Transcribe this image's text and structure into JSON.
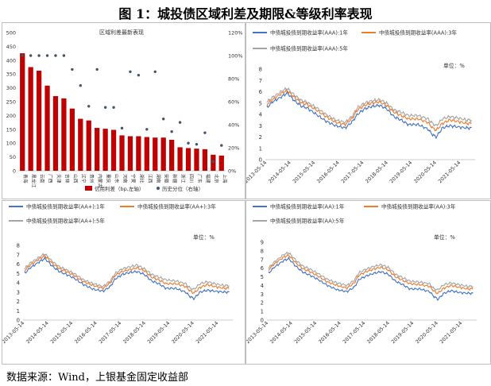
{
  "figure_title": "图 1：城投债区域利差及期限&等级利率表现",
  "source": "数据来源：Wind，上银基金固定收益部",
  "chart_data": [
    {
      "type": "bar",
      "title": "区域利差最新表现",
      "categories": [
        "青海",
        "黑龙江",
        "云南",
        "广西",
        "天津",
        "吉林",
        "山西",
        "辽宁",
        "贵州",
        "内蒙古",
        "重庆",
        "山东",
        "河南",
        "宁夏",
        "湖北",
        "江西",
        "湖南",
        "安徽",
        "新疆",
        "浙江",
        "四川",
        "广东",
        "福建",
        "北京",
        "上海"
      ],
      "series": [
        {
          "name": "信用利差（bp,左轴）",
          "type": "bar",
          "axis": "left",
          "values": [
            425,
            375,
            362,
            308,
            270,
            262,
            225,
            188,
            182,
            155,
            152,
            148,
            128,
            125,
            125,
            122,
            120,
            120,
            112,
            85,
            82,
            80,
            78,
            58,
            55
          ]
        },
        {
          "name": "历史分位（右轴）",
          "type": "scatter",
          "axis": "right",
          "values": [
            100,
            100,
            100,
            100,
            100,
            100,
            88,
            74,
            56,
            88,
            55,
            55,
            37,
            86,
            83,
            36,
            86,
            45,
            34,
            42,
            24,
            23,
            33,
            8,
            22
          ]
        }
      ],
      "left_axis": {
        "min": 0,
        "max": 500,
        "ticks": [
          0,
          50,
          100,
          150,
          200,
          250,
          300,
          350,
          400,
          450,
          500
        ]
      },
      "right_axis": {
        "min": 0,
        "max": 120,
        "ticks": [
          "0%",
          "20%",
          "40%",
          "60%",
          "80%",
          "100%",
          "120%"
        ]
      },
      "legend_placement": "bottom"
    },
    {
      "type": "line",
      "unit_label": "单位：%",
      "x_ticks": [
        "2013-05-14",
        "2014-05-14",
        "2015-05-14",
        "2016-05-14",
        "2017-05-14",
        "2018-05-14",
        "2019-05-14",
        "2020-05-14",
        "2021-05-14"
      ],
      "ylim": [
        0,
        8
      ],
      "y_ticks": [
        0,
        1,
        2,
        3,
        4,
        5,
        6,
        7,
        8
      ],
      "anchors_x": [
        2013.36,
        2013.6,
        2014.0,
        2014.2,
        2014.5,
        2014.8,
        2015.0,
        2015.4,
        2015.8,
        2016.2,
        2016.6,
        2016.9,
        2017.1,
        2017.4,
        2017.7,
        2018.0,
        2018.3,
        2018.6,
        2018.9,
        2019.2,
        2019.6,
        2020.0,
        2020.2,
        2020.35,
        2020.6,
        2020.9,
        2021.2,
        2021.6,
        2021.8
      ],
      "series": [
        {
          "name": "中债城投债到期收益率(AAA):1年",
          "color": "#4472C4",
          "values": [
            4.6,
            5.1,
            5.6,
            5.9,
            5.2,
            4.7,
            4.6,
            4.0,
            3.4,
            3.0,
            2.8,
            3.4,
            4.0,
            4.5,
            4.7,
            4.8,
            4.5,
            3.8,
            3.5,
            3.1,
            3.1,
            2.7,
            2.2,
            2.0,
            2.8,
            3.0,
            2.9,
            2.8,
            2.8
          ]
        },
        {
          "name": "中债城投债到期收益率(AAA):3年",
          "color": "#ED7D31",
          "values": [
            4.9,
            5.3,
            5.9,
            6.1,
            5.5,
            5.0,
            4.9,
            4.4,
            3.8,
            3.3,
            3.1,
            3.7,
            4.4,
            4.8,
            5.0,
            5.1,
            4.8,
            4.2,
            3.9,
            3.6,
            3.6,
            3.3,
            2.8,
            2.6,
            3.2,
            3.5,
            3.4,
            3.2,
            3.2
          ]
        },
        {
          "name": "中债城投债到期收益率(AAA):5年",
          "color": "#A5A5A5",
          "values": [
            5.1,
            5.5,
            6.1,
            6.3,
            5.7,
            5.2,
            5.1,
            4.6,
            4.0,
            3.5,
            3.3,
            3.9,
            4.6,
            5.0,
            5.2,
            5.3,
            5.0,
            4.4,
            4.2,
            3.9,
            3.9,
            3.6,
            3.2,
            3.0,
            3.6,
            3.8,
            3.7,
            3.5,
            3.5
          ]
        }
      ]
    },
    {
      "type": "line",
      "unit_label": "单位：%",
      "x_ticks": [
        "2013-05-14",
        "2014-05-14",
        "2015-05-14",
        "2016-05-14",
        "2017-05-14",
        "2018-05-14",
        "2019-05-14",
        "2020-05-14",
        "2021-05-14"
      ],
      "ylim": [
        0,
        8
      ],
      "y_ticks": [
        0,
        1,
        2,
        3,
        4,
        5,
        6,
        7,
        8
      ],
      "anchors_x": [
        2013.36,
        2013.6,
        2014.0,
        2014.2,
        2014.5,
        2014.8,
        2015.0,
        2015.4,
        2015.8,
        2016.2,
        2016.6,
        2016.9,
        2017.1,
        2017.4,
        2017.7,
        2018.0,
        2018.3,
        2018.6,
        2018.9,
        2019.2,
        2019.6,
        2020.0,
        2020.2,
        2020.35,
        2020.6,
        2020.9,
        2021.2,
        2021.6,
        2021.8
      ],
      "series": [
        {
          "name": "中债城投债到期收益率(AA+):1年",
          "color": "#4472C4",
          "values": [
            5.0,
            5.6,
            6.3,
            6.6,
            5.8,
            5.2,
            5.0,
            4.5,
            3.8,
            3.3,
            3.1,
            3.6,
            4.4,
            4.9,
            5.1,
            5.2,
            4.9,
            4.2,
            3.9,
            3.4,
            3.4,
            3.0,
            2.5,
            2.3,
            3.0,
            3.2,
            3.1,
            3.0,
            3.0
          ]
        },
        {
          "name": "中债城投债到期收益率(AA+):3年",
          "color": "#ED7D31",
          "values": [
            5.3,
            5.9,
            6.6,
            6.9,
            6.1,
            5.5,
            5.3,
            4.8,
            4.1,
            3.7,
            3.4,
            4.0,
            4.8,
            5.2,
            5.4,
            5.6,
            5.3,
            4.6,
            4.3,
            3.9,
            3.9,
            3.6,
            3.1,
            2.9,
            3.5,
            3.8,
            3.6,
            3.4,
            3.4
          ]
        },
        {
          "name": "中债城投债到期收益率(AA+):5年",
          "color": "#A5A5A5",
          "values": [
            5.5,
            6.1,
            6.8,
            7.1,
            6.3,
            5.7,
            5.5,
            5.0,
            4.3,
            3.9,
            3.6,
            4.2,
            5.0,
            5.5,
            5.7,
            5.9,
            5.5,
            4.9,
            4.6,
            4.3,
            4.2,
            3.9,
            3.4,
            3.3,
            3.9,
            4.1,
            3.9,
            3.7,
            3.7
          ]
        }
      ]
    },
    {
      "type": "line",
      "unit_label": "单位：%",
      "x_ticks": [
        "2013-05-14",
        "2014-05-14",
        "2015-05-14",
        "2016-05-14",
        "2017-05-14",
        "2018-05-14",
        "2019-05-14",
        "2020-05-14",
        "2021-05-14"
      ],
      "ylim": [
        0,
        9
      ],
      "y_ticks": [
        0,
        1,
        2,
        3,
        4,
        5,
        6,
        7,
        8,
        9
      ],
      "anchors_x": [
        2013.36,
        2013.6,
        2014.0,
        2014.2,
        2014.5,
        2014.8,
        2015.0,
        2015.4,
        2015.8,
        2016.2,
        2016.6,
        2016.9,
        2017.1,
        2017.4,
        2017.7,
        2018.0,
        2018.3,
        2018.6,
        2018.9,
        2019.2,
        2019.6,
        2020.0,
        2020.2,
        2020.35,
        2020.6,
        2020.9,
        2021.2,
        2021.6,
        2021.8
      ],
      "series": [
        {
          "name": "中债城投债到期收益率(AA):1年",
          "color": "#4472C4",
          "values": [
            5.4,
            6.1,
            6.9,
            7.1,
            6.2,
            5.5,
            5.3,
            4.7,
            4.0,
            3.5,
            3.3,
            3.8,
            4.7,
            5.1,
            5.4,
            5.6,
            5.3,
            4.5,
            4.1,
            3.6,
            3.6,
            3.3,
            2.7,
            2.4,
            3.1,
            3.4,
            3.2,
            3.1,
            3.1
          ]
        },
        {
          "name": "中债城投债到期收益率(AA):3年",
          "color": "#ED7D31",
          "values": [
            5.8,
            6.5,
            7.3,
            7.5,
            6.6,
            5.9,
            5.7,
            5.1,
            4.4,
            4.0,
            3.7,
            4.3,
            5.2,
            5.6,
            5.9,
            6.1,
            5.8,
            5.0,
            4.6,
            4.2,
            4.1,
            3.9,
            3.3,
            3.1,
            3.7,
            4.0,
            3.8,
            3.6,
            3.6
          ]
        },
        {
          "name": "中债城投债到期收益率(AA):5年",
          "color": "#A5A5A5",
          "values": [
            6.0,
            6.7,
            7.6,
            7.8,
            6.9,
            6.2,
            6.0,
            5.4,
            4.7,
            4.3,
            4.0,
            4.6,
            5.5,
            5.9,
            6.2,
            6.4,
            6.1,
            5.3,
            4.9,
            4.5,
            4.4,
            4.2,
            3.6,
            3.5,
            4.1,
            4.3,
            4.1,
            3.9,
            3.9
          ]
        }
      ]
    }
  ]
}
